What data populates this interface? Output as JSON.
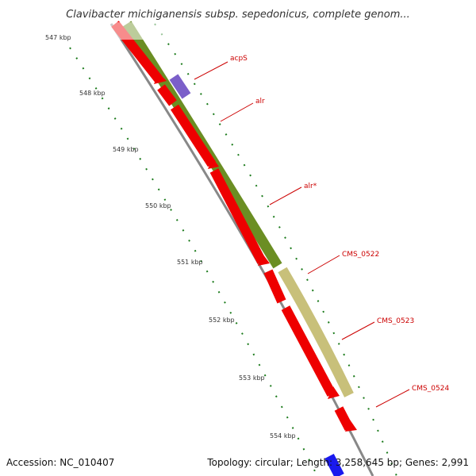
{
  "map": {
    "title": "Clavibacter michiganensis subsp. sepedonicus, complete genom...",
    "accession_text": "Accession: NC_010407",
    "summary_text": "Topology: circular; Length: 3,258,645 bp; Genes: 2,991"
  },
  "ticks": [
    {
      "label": "547 kbp",
      "kbp": 547
    },
    {
      "label": "548 kbp",
      "kbp": 548
    },
    {
      "label": "549 kbp",
      "kbp": 549
    },
    {
      "label": "550 kbp",
      "kbp": 550
    },
    {
      "label": "551 kbp",
      "kbp": 551
    },
    {
      "label": "552 kbp",
      "kbp": 552
    },
    {
      "label": "553 kbp",
      "kbp": 553
    },
    {
      "label": "554 kbp",
      "kbp": 554
    }
  ],
  "gene_labels": [
    {
      "name": "acpS"
    },
    {
      "name": "alr"
    },
    {
      "name": "alr*"
    },
    {
      "name": "CMS_0522"
    },
    {
      "name": "CMS_0523"
    },
    {
      "name": "CMS_0524"
    }
  ],
  "colors": {
    "cds": "#ee0000",
    "cog_olive": "#6b8e23",
    "cog_khaki": "#c8c07a",
    "cog_purple": "#7b5fc9",
    "strand_blue": "#1a1aee",
    "backbone": "#888888",
    "label": "#cc0000",
    "tick": "#1a7a1a"
  }
}
